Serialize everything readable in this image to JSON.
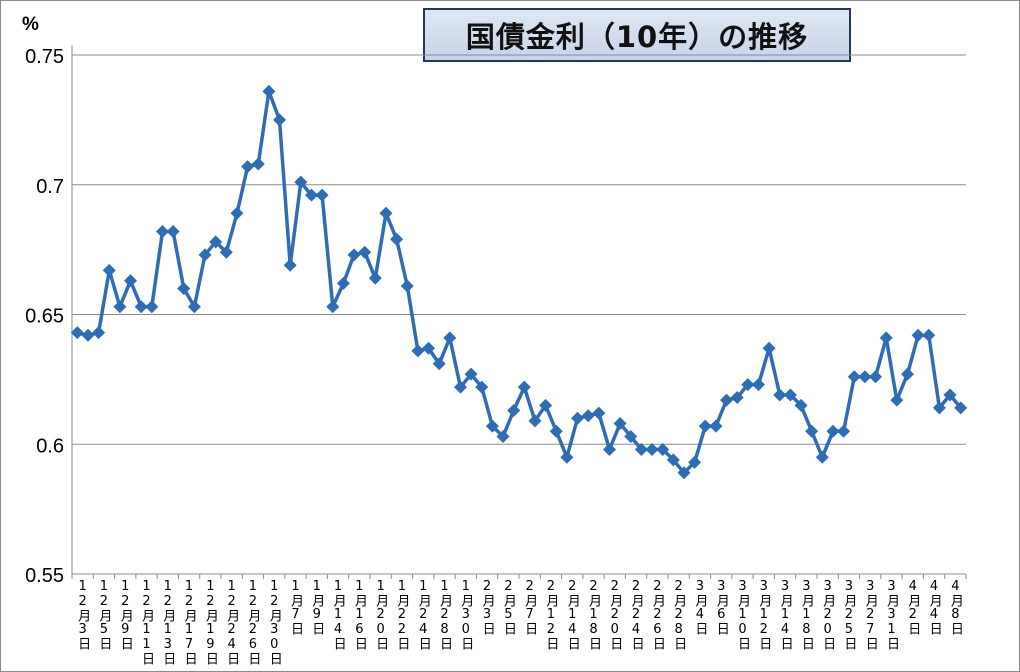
{
  "chart_data": {
    "type": "line",
    "title": "国債金利（10年）の推移",
    "ylabel": "%",
    "xlabel": "",
    "ylim": [
      0.55,
      0.75
    ],
    "yticks": [
      "0.55",
      "0.6",
      "0.65",
      "0.7",
      "0.75"
    ],
    "grid": true,
    "legend": "none",
    "series_color": "#2e6db4",
    "x_labels": [
      "12月3日",
      "12月5日",
      "12月9日",
      "12月11日",
      "12月13日",
      "12月17日",
      "12月19日",
      "12月24日",
      "12月26日",
      "12月30日",
      "1月7日",
      "1月9日",
      "1月14日",
      "1月16日",
      "1月20日",
      "1月22日",
      "1月24日",
      "1月28日",
      "1月30日",
      "2月3日",
      "2月5日",
      "2月7日",
      "2月12日",
      "2月14日",
      "2月18日",
      "2月20日",
      "2月24日",
      "2月26日",
      "2月28日",
      "3月4日",
      "3月6日",
      "3月10日",
      "3月12日",
      "3月14日",
      "3月18日",
      "3月20日",
      "3月25日",
      "3月27日",
      "3月31日",
      "4月2日",
      "4月4日",
      "4月8日"
    ],
    "series": [
      {
        "values": [
          0.643,
          0.642,
          0.643,
          0.667,
          0.653,
          0.663,
          0.653,
          0.653,
          0.682,
          0.682,
          0.66,
          0.653,
          0.673,
          0.678,
          0.674,
          0.689,
          0.707,
          0.708,
          0.736,
          0.725,
          0.669,
          0.701,
          0.696,
          0.696,
          0.653,
          0.662,
          0.673,
          0.674,
          0.664,
          0.689,
          0.679,
          0.661,
          0.636,
          0.637,
          0.631,
          0.641,
          0.622,
          0.627,
          0.622,
          0.607,
          0.603,
          0.613,
          0.622,
          0.609,
          0.615,
          0.605,
          0.595,
          0.61,
          0.611,
          0.612,
          0.598,
          0.608,
          0.603,
          0.598,
          0.598,
          0.598,
          0.594,
          0.589,
          0.593,
          0.607,
          0.607,
          0.617,
          0.618,
          0.623,
          0.623,
          0.637,
          0.619,
          0.619,
          0.615,
          0.605,
          0.595,
          0.605,
          0.605,
          0.626,
          0.626,
          0.626,
          0.641,
          0.617,
          0.627,
          0.642,
          0.642,
          0.614,
          0.619,
          0.614
        ]
      }
    ]
  }
}
